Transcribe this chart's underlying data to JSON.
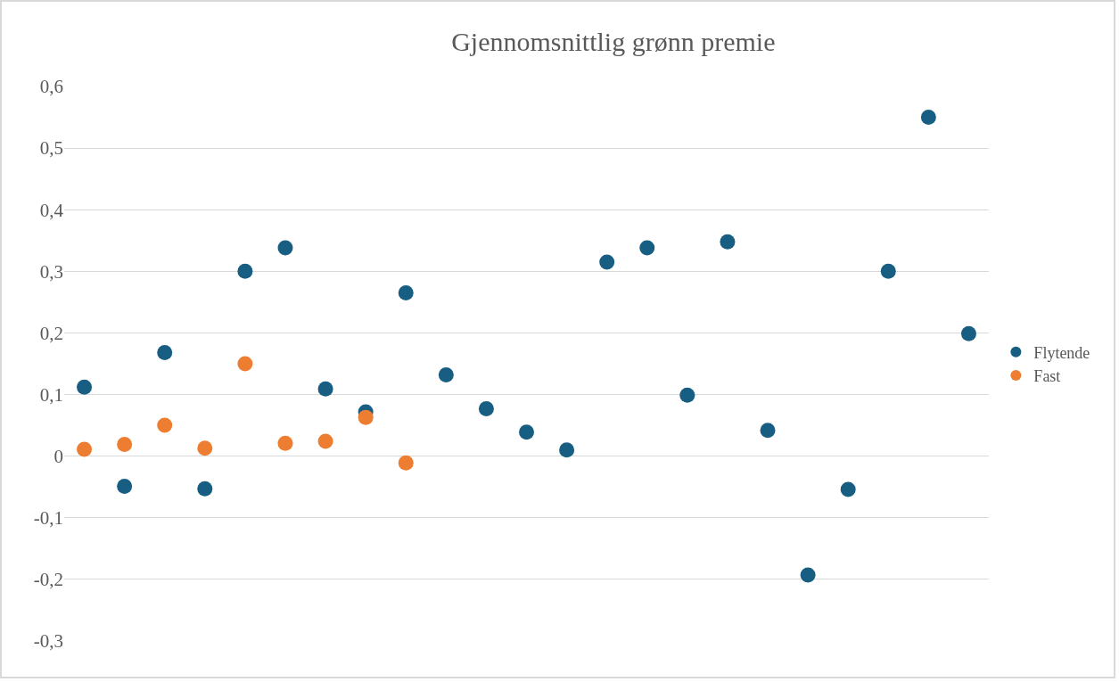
{
  "chart_data": {
    "type": "scatter",
    "title": "Gjennomsnittlig grønn premie",
    "categories": [
      null,
      null,
      null,
      null,
      null,
      null,
      null,
      null,
      null,
      null,
      null,
      null,
      null,
      null,
      null,
      null,
      null,
      null,
      null,
      null,
      null,
      null,
      null
    ],
    "series": [
      {
        "name": "Flytende",
        "color": "#185e82",
        "values": [
          0.112,
          -0.049,
          0.168,
          -0.053,
          0.3,
          0.338,
          0.109,
          0.072,
          0.265,
          0.132,
          0.077,
          0.039,
          0.01,
          0.315,
          0.338,
          0.099,
          0.348,
          0.042,
          -0.193,
          -0.054,
          0.3,
          0.55,
          0.199
        ]
      },
      {
        "name": "Fast",
        "color": "#ed7d31",
        "values": [
          0.011,
          0.019,
          0.05,
          0.013,
          0.15,
          0.021,
          0.024,
          0.063,
          -0.011,
          null,
          null,
          null,
          null,
          null,
          null,
          null,
          null,
          null,
          null,
          null,
          null,
          null,
          null
        ]
      }
    ],
    "ylim": [
      -0.3,
      0.6
    ],
    "yticks": [
      {
        "value": -0.3,
        "label": "-0,3"
      },
      {
        "value": -0.2,
        "label": "-0,2"
      },
      {
        "value": -0.1,
        "label": "-0,1"
      },
      0,
      {
        "value": 0.1,
        "label": "0,1"
      },
      {
        "value": 0.2,
        "label": "0,2"
      },
      {
        "value": 0.3,
        "label": "0,3"
      },
      {
        "value": 0.4,
        "label": "0,4"
      },
      {
        "value": 0.5,
        "label": "0,5"
      },
      {
        "value": 0.6,
        "label": "0,6"
      }
    ],
    "grid": "y",
    "legend": "right",
    "tick_labels": "y",
    "marker": "circle"
  }
}
